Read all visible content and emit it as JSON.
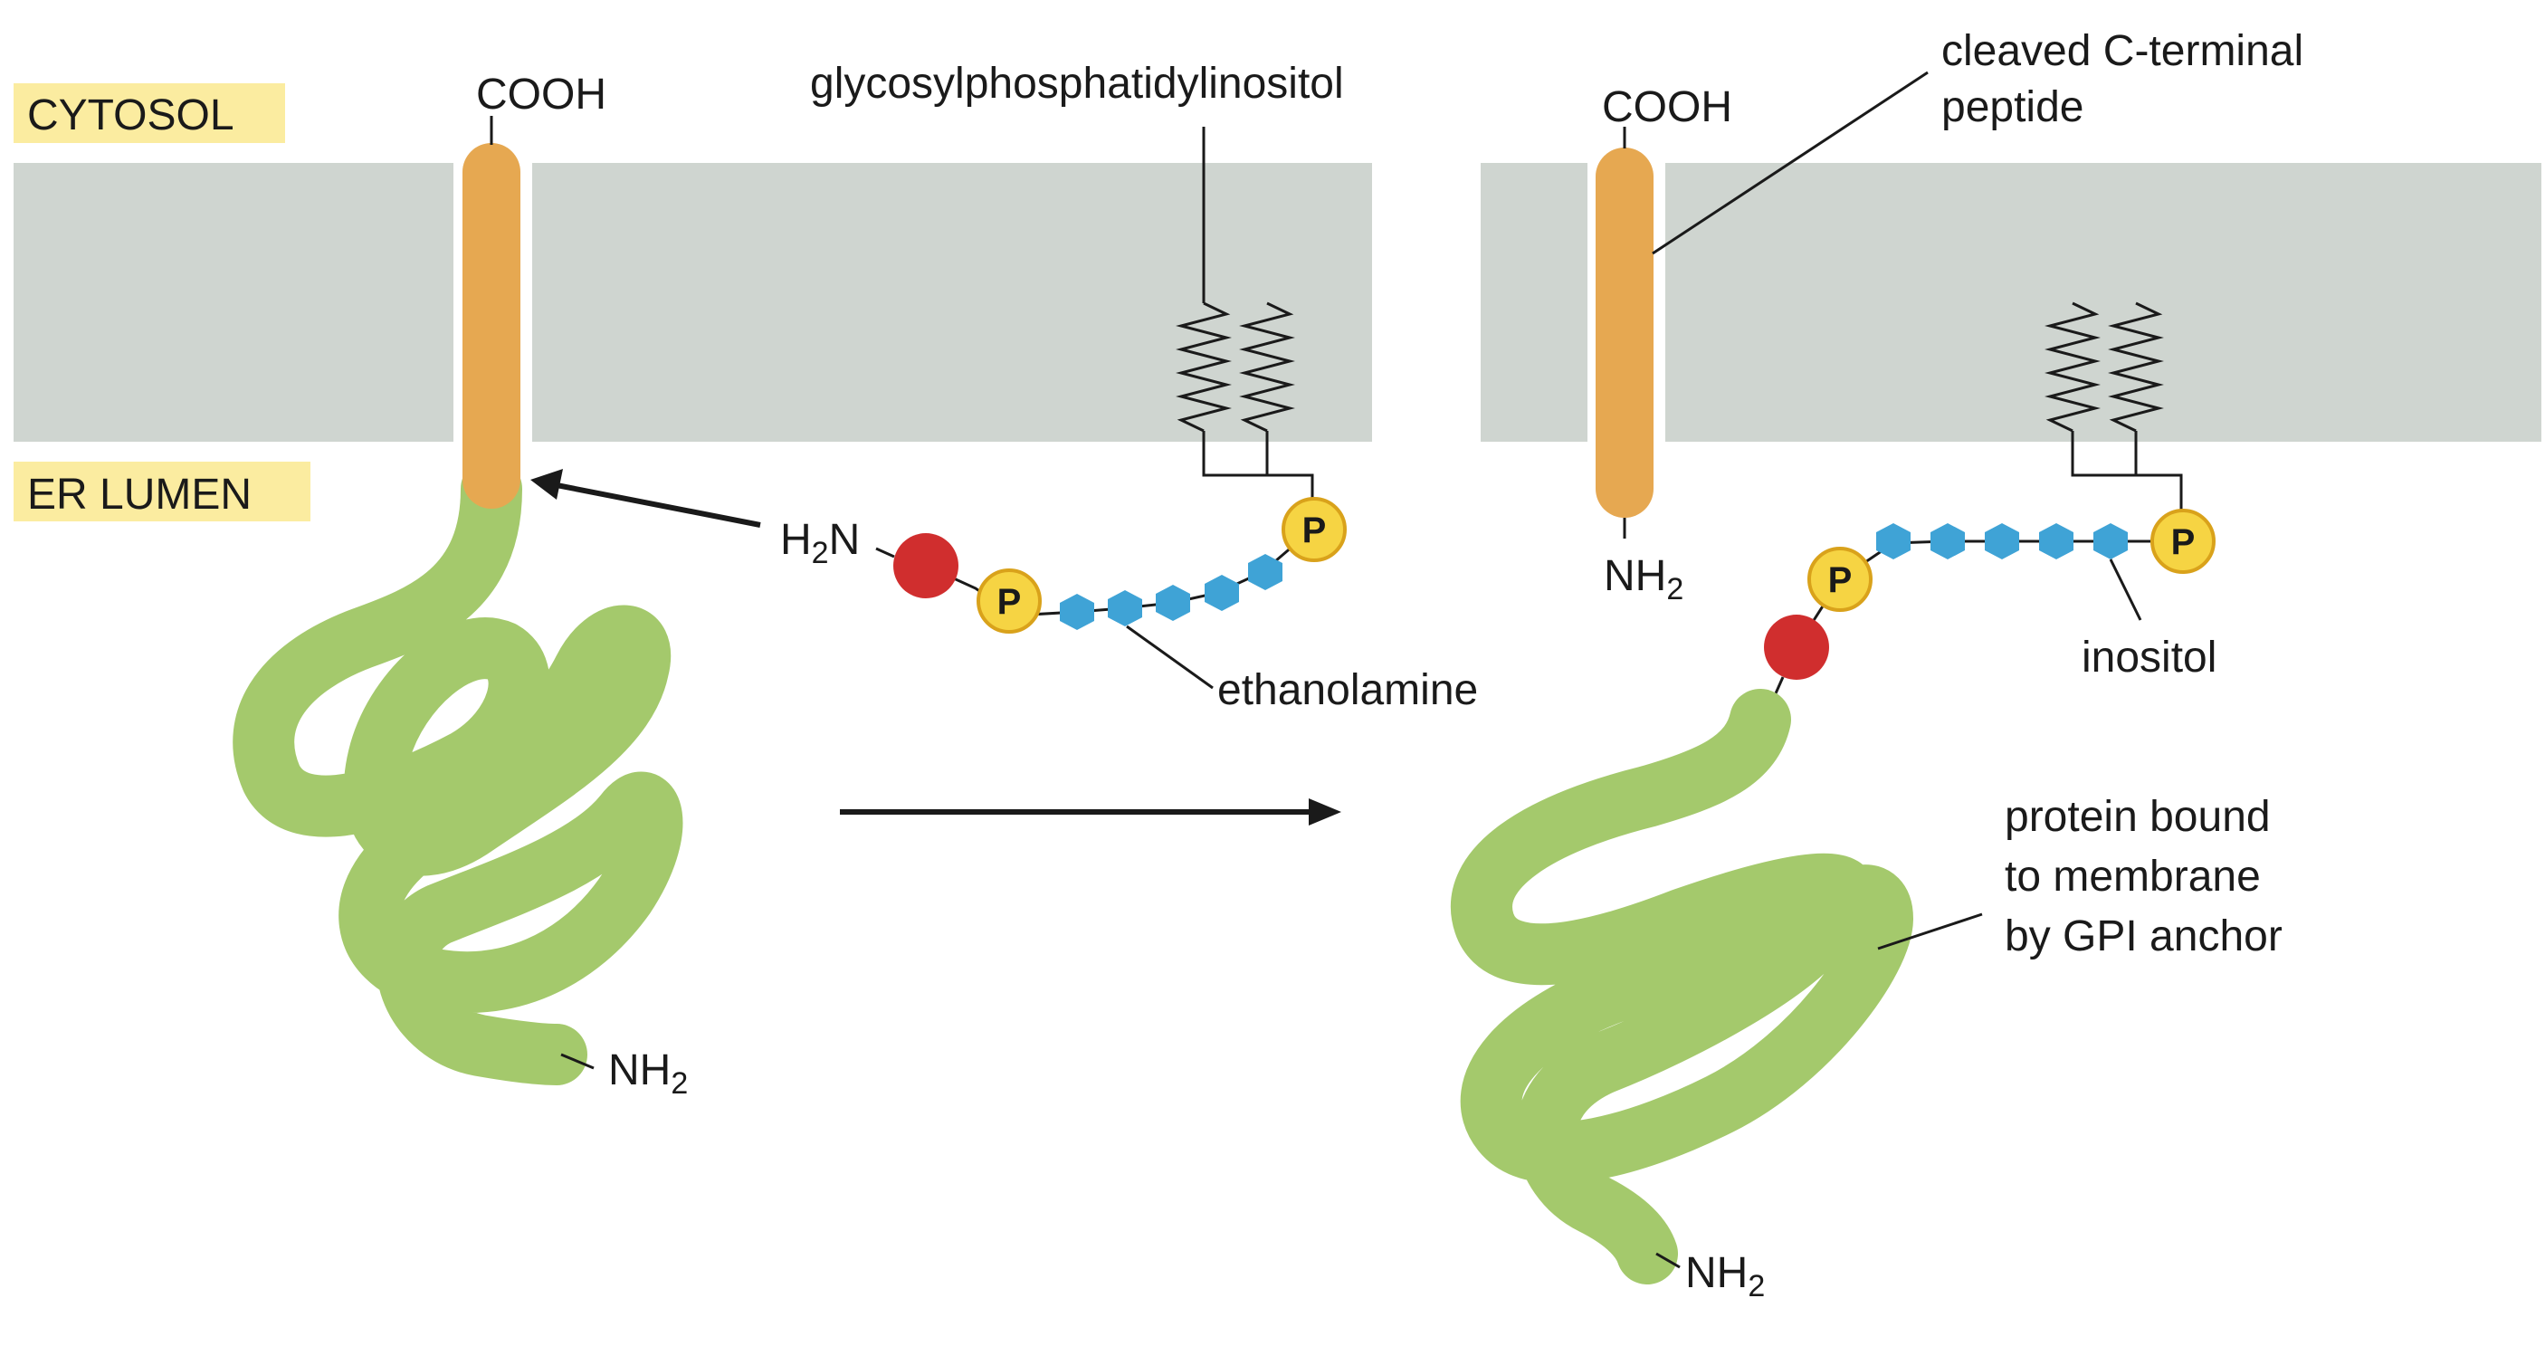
{
  "regions": {
    "cytosol": "CYTOSOL",
    "er_lumen": "ER LUMEN"
  },
  "labels": {
    "cooh_left": "COOH",
    "cooh_right": "COOH",
    "gpi": "glycosylphosphatidylinositol",
    "cleaved_line1": "cleaved C-terminal",
    "cleaved_line2": "peptide",
    "h2n": "H",
    "h2n_sub": "2",
    "h2n_end": "N",
    "nh2_cleaved": "NH",
    "nh2_cleaved_sub": "2",
    "nh2_left": "NH",
    "nh2_left_sub": "2",
    "nh2_right": "NH",
    "nh2_right_sub": "2",
    "ethanolamine": "ethanolamine",
    "inositol": "inositol",
    "protein_line1": "protein bound",
    "protein_line2": "to membrane",
    "protein_line3": "by GPI anchor",
    "phosphate": "P"
  },
  "colors": {
    "membrane": "#cfd5d0",
    "region_label_bg": "#fbeca0",
    "peptide": "#e6a851",
    "protein": "#a4c96c",
    "sugar": "#3fa3d6",
    "ethanolamine": "#d02e2e",
    "phosphate_fill": "#f6d443",
    "phosphate_stroke": "#d9a21b",
    "line": "#1a1a1a"
  }
}
